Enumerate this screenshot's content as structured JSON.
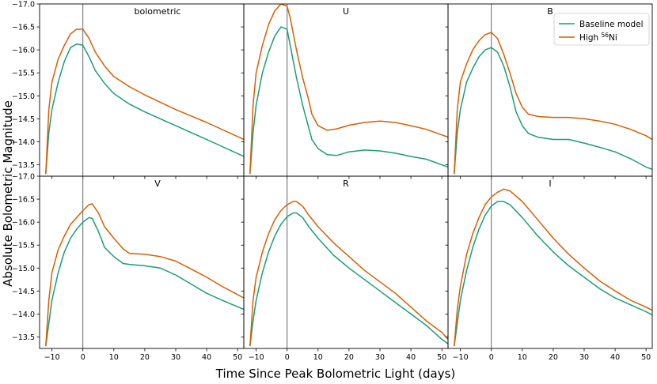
{
  "figure": {
    "xlabel": "Time Since Peak Bolometric Light (days)",
    "ylabel": "Absolute Bolometric Magnitude",
    "legend": {
      "placement": "top-right of panel B",
      "entries": [
        {
          "label": "Baseline model",
          "color": "#1b9e77"
        },
        {
          "label_prefix": "High ",
          "label_sup": "56",
          "label_suffix": "Ni",
          "color": "#d95f02"
        }
      ]
    },
    "x_ticks": [
      -10,
      0,
      10,
      20,
      30,
      40,
      50
    ],
    "y_ticks": [
      -17.0,
      -16.5,
      -16.0,
      -15.5,
      -15.0,
      -14.5,
      -14.0,
      -13.5
    ],
    "peak_marker_x": 0
  },
  "chart_data": [
    {
      "type": "line",
      "title": "bolometric",
      "xlim": [
        -14,
        52
      ],
      "ylim": [
        -17.0,
        -13.25
      ],
      "y_inverted": true,
      "series": [
        {
          "name": "Baseline model",
          "x": [
            -12,
            -11,
            -10,
            -8,
            -6,
            -4,
            -2,
            0,
            2,
            4,
            7,
            10,
            15,
            20,
            30,
            40,
            52
          ],
          "y": [
            -13.3,
            -14.2,
            -14.7,
            -15.3,
            -15.75,
            -16.05,
            -16.13,
            -16.1,
            -15.85,
            -15.55,
            -15.27,
            -15.05,
            -14.82,
            -14.65,
            -14.35,
            -14.05,
            -13.68
          ]
        },
        {
          "name": "High 56Ni",
          "x": [
            -12,
            -11,
            -10,
            -8,
            -6,
            -4,
            -2,
            0,
            2,
            4,
            7,
            10,
            15,
            20,
            30,
            40,
            52
          ],
          "y": [
            -13.3,
            -14.7,
            -15.3,
            -15.8,
            -16.1,
            -16.35,
            -16.45,
            -16.45,
            -16.25,
            -15.95,
            -15.65,
            -15.42,
            -15.2,
            -15.02,
            -14.7,
            -14.42,
            -14.05
          ]
        }
      ]
    },
    {
      "type": "line",
      "title": "U",
      "xlim": [
        -14,
        52
      ],
      "ylim": [
        -17.0,
        -13.25
      ],
      "y_inverted": true,
      "series": [
        {
          "name": "Baseline model",
          "x": [
            -12,
            -11,
            -10,
            -8,
            -6,
            -4,
            -2,
            0,
            1,
            3,
            5,
            7,
            8,
            10,
            13,
            16,
            20,
            25,
            30,
            35,
            40,
            45,
            52
          ],
          "y": [
            -13.3,
            -14.2,
            -14.8,
            -15.5,
            -15.95,
            -16.3,
            -16.5,
            -16.45,
            -16.1,
            -15.4,
            -14.8,
            -14.3,
            -14.05,
            -13.85,
            -13.72,
            -13.7,
            -13.78,
            -13.82,
            -13.8,
            -13.75,
            -13.68,
            -13.62,
            -13.45
          ]
        },
        {
          "name": "High 56Ni",
          "x": [
            -12,
            -11,
            -10,
            -8,
            -6,
            -4,
            -2,
            0,
            1,
            3,
            5,
            7,
            8,
            10,
            13,
            16,
            20,
            25,
            30,
            35,
            40,
            45,
            52
          ],
          "y": [
            -13.3,
            -14.8,
            -15.5,
            -16.1,
            -16.55,
            -16.85,
            -17.0,
            -16.95,
            -16.7,
            -16.0,
            -15.4,
            -14.9,
            -14.6,
            -14.35,
            -14.25,
            -14.28,
            -14.36,
            -14.42,
            -14.45,
            -14.42,
            -14.35,
            -14.27,
            -14.1
          ]
        }
      ]
    },
    {
      "type": "line",
      "title": "B",
      "xlim": [
        -14,
        52
      ],
      "ylim": [
        -17.0,
        -13.25
      ],
      "y_inverted": true,
      "series": [
        {
          "name": "Baseline model",
          "x": [
            -12,
            -11,
            -10,
            -8,
            -6,
            -4,
            -2,
            0,
            2,
            4,
            6,
            8,
            10,
            12,
            15,
            20,
            25,
            30,
            35,
            40,
            45,
            50,
            52
          ],
          "y": [
            -13.3,
            -14.2,
            -14.7,
            -15.3,
            -15.6,
            -15.85,
            -16.0,
            -16.05,
            -15.95,
            -15.65,
            -15.2,
            -14.65,
            -14.35,
            -14.18,
            -14.1,
            -14.05,
            -14.05,
            -13.97,
            -13.88,
            -13.78,
            -13.63,
            -13.45,
            -13.4
          ]
        },
        {
          "name": "High 56Ni",
          "x": [
            -12,
            -11,
            -10,
            -8,
            -6,
            -4,
            -2,
            0,
            2,
            4,
            6,
            8,
            10,
            12,
            15,
            20,
            25,
            30,
            35,
            40,
            45,
            50,
            52
          ],
          "y": [
            -13.3,
            -14.7,
            -15.3,
            -15.7,
            -16.0,
            -16.2,
            -16.33,
            -16.38,
            -16.25,
            -15.9,
            -15.5,
            -15.05,
            -14.75,
            -14.6,
            -14.55,
            -14.53,
            -14.53,
            -14.5,
            -14.45,
            -14.38,
            -14.27,
            -14.13,
            -14.05
          ]
        }
      ]
    },
    {
      "type": "line",
      "title": "V",
      "xlim": [
        -14,
        52
      ],
      "ylim": [
        -17.0,
        -13.25
      ],
      "y_inverted": true,
      "series": [
        {
          "name": "Baseline model",
          "x": [
            -12,
            -11,
            -10,
            -8,
            -6,
            -4,
            -2,
            0,
            2,
            3,
            5,
            7,
            10,
            13,
            15,
            20,
            25,
            30,
            35,
            40,
            45,
            52
          ],
          "y": [
            -13.3,
            -13.8,
            -14.3,
            -14.9,
            -15.35,
            -15.65,
            -15.85,
            -16.0,
            -16.1,
            -16.08,
            -15.8,
            -15.45,
            -15.25,
            -15.1,
            -15.08,
            -15.05,
            -15.0,
            -14.85,
            -14.65,
            -14.45,
            -14.3,
            -14.1
          ]
        },
        {
          "name": "High 56Ni",
          "x": [
            -12,
            -11,
            -10,
            -8,
            -6,
            -4,
            -2,
            0,
            2,
            3,
            5,
            7,
            10,
            13,
            15,
            20,
            25,
            30,
            35,
            40,
            45,
            52
          ],
          "y": [
            -13.3,
            -14.3,
            -14.9,
            -15.4,
            -15.7,
            -15.95,
            -16.1,
            -16.25,
            -16.38,
            -16.4,
            -16.2,
            -15.9,
            -15.65,
            -15.42,
            -15.32,
            -15.3,
            -15.25,
            -15.15,
            -14.98,
            -14.8,
            -14.6,
            -14.35
          ]
        }
      ]
    },
    {
      "type": "line",
      "title": "R",
      "xlim": [
        -14,
        52
      ],
      "ylim": [
        -17.0,
        -13.25
      ],
      "y_inverted": true,
      "series": [
        {
          "name": "Baseline model",
          "x": [
            -12,
            -11,
            -10,
            -8,
            -6,
            -4,
            -2,
            0,
            2,
            3,
            5,
            7,
            10,
            15,
            20,
            25,
            30,
            35,
            40,
            45,
            50,
            52
          ],
          "y": [
            -13.3,
            -13.85,
            -14.3,
            -14.9,
            -15.35,
            -15.7,
            -15.95,
            -16.12,
            -16.2,
            -16.2,
            -16.1,
            -15.9,
            -15.65,
            -15.28,
            -15.0,
            -14.75,
            -14.5,
            -14.25,
            -14.0,
            -13.75,
            -13.45,
            -13.35
          ]
        },
        {
          "name": "High 56Ni",
          "x": [
            -12,
            -11,
            -10,
            -8,
            -6,
            -4,
            -2,
            0,
            2,
            3,
            5,
            7,
            10,
            15,
            20,
            25,
            30,
            35,
            40,
            45,
            50,
            52
          ],
          "y": [
            -13.3,
            -14.3,
            -14.8,
            -15.35,
            -15.75,
            -16.05,
            -16.25,
            -16.38,
            -16.45,
            -16.45,
            -16.35,
            -16.15,
            -15.9,
            -15.55,
            -15.25,
            -14.95,
            -14.7,
            -14.45,
            -14.15,
            -13.85,
            -13.6,
            -13.45
          ]
        }
      ]
    },
    {
      "type": "line",
      "title": "I",
      "xlim": [
        -14,
        52
      ],
      "ylim": [
        -17.0,
        -13.25
      ],
      "y_inverted": true,
      "series": [
        {
          "name": "Baseline model",
          "x": [
            -12,
            -11,
            -10,
            -8,
            -6,
            -4,
            -2,
            0,
            2,
            4,
            6,
            10,
            15,
            20,
            25,
            30,
            35,
            40,
            45,
            50,
            52
          ],
          "y": [
            -13.3,
            -13.8,
            -14.3,
            -14.95,
            -15.45,
            -15.85,
            -16.15,
            -16.35,
            -16.45,
            -16.45,
            -16.38,
            -16.1,
            -15.7,
            -15.35,
            -15.05,
            -14.8,
            -14.55,
            -14.35,
            -14.2,
            -14.05,
            -13.98
          ]
        },
        {
          "name": "High 56Ni",
          "x": [
            -12,
            -11,
            -10,
            -8,
            -6,
            -4,
            -2,
            0,
            2,
            4,
            6,
            10,
            15,
            20,
            25,
            30,
            35,
            40,
            45,
            50,
            52
          ],
          "y": [
            -13.3,
            -14.1,
            -14.6,
            -15.3,
            -15.75,
            -16.1,
            -16.38,
            -16.55,
            -16.65,
            -16.72,
            -16.68,
            -16.45,
            -16.05,
            -15.65,
            -15.3,
            -15.0,
            -14.72,
            -14.5,
            -14.3,
            -14.15,
            -14.08
          ]
        }
      ]
    }
  ]
}
